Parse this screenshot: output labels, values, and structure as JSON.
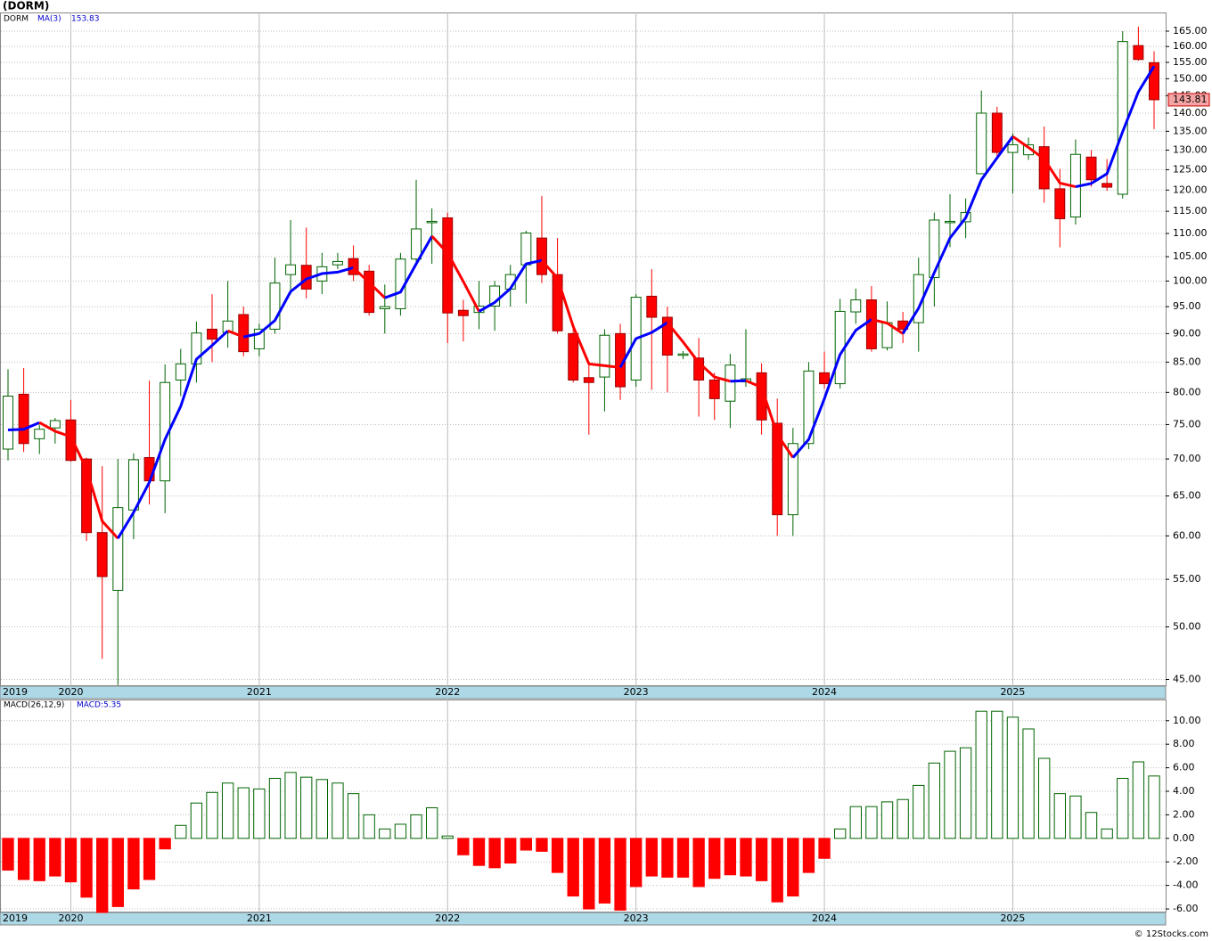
{
  "chart_data": [
    {
      "type": "candlestick",
      "title": "(DORM)",
      "symbol": "DORM",
      "ma_name": "MA(3)",
      "ma_last": "153.83",
      "last_price": 143.81,
      "categories": [
        "2019",
        null,
        null,
        null,
        "2020",
        null,
        null,
        null,
        null,
        null,
        null,
        null,
        null,
        null,
        null,
        null,
        "2021",
        null,
        null,
        null,
        null,
        null,
        null,
        null,
        null,
        null,
        null,
        null,
        "2022",
        null,
        null,
        null,
        null,
        null,
        null,
        null,
        null,
        null,
        null,
        null,
        "2023",
        null,
        null,
        null,
        null,
        null,
        null,
        null,
        null,
        null,
        null,
        null,
        "2024",
        null,
        null,
        null,
        null,
        null,
        null,
        null,
        null,
        null,
        null,
        null,
        "2025",
        null,
        null,
        null,
        null,
        null,
        null,
        null,
        null,
        null
      ],
      "open": [
        71.4,
        79.7,
        72.9,
        74.5,
        75.7,
        70,
        60.4,
        53.8,
        63.2,
        70.2,
        67,
        82,
        84.7,
        90.8,
        90.2,
        93.5,
        87.3,
        90.8,
        101.3,
        103.2,
        100,
        103.3,
        104.6,
        102,
        94.6,
        94.6,
        104.5,
        112.4,
        113.5,
        94.3,
        93.9,
        95.1,
        98.4,
        103.3,
        109,
        101.3,
        90,
        82.4,
        82.5,
        90,
        82,
        97,
        93,
        86.2,
        85.7,
        82,
        78.6,
        81.7,
        83.2,
        75.2,
        62.6,
        72.2,
        83.2,
        81.4,
        94,
        96.3,
        87.5,
        92.3,
        92,
        100.7,
        112.4,
        112.6,
        124,
        140,
        129.4,
        128.8,
        130.9,
        120.3,
        113.7,
        128.2,
        121.6,
        119,
        160.3,
        154.9
      ],
      "high": [
        83.8,
        84,
        75,
        76,
        78.8,
        70.2,
        69,
        70,
        70.8,
        81.9,
        84.6,
        87.3,
        92.2,
        97.4,
        100,
        95,
        91.8,
        104.8,
        113,
        111.3,
        105.8,
        105.8,
        107.4,
        103.3,
        99.3,
        105.8,
        122.5,
        115.7,
        114.7,
        96.3,
        100,
        100,
        103.3,
        110.6,
        118.6,
        109,
        91.8,
        85,
        90.8,
        91.8,
        97.4,
        102.4,
        95,
        86.9,
        89.2,
        83.2,
        86.4,
        90.8,
        84.8,
        79,
        74.5,
        85,
        86.8,
        96.5,
        98.5,
        99,
        96,
        94,
        104.8,
        114.7,
        119,
        118,
        146.5,
        141.8,
        134.5,
        133.3,
        136.3,
        125.2,
        132.8,
        130,
        127.7,
        165,
        166.5,
        158.5
      ],
      "low": [
        69.8,
        71,
        70.7,
        72.2,
        69.6,
        59.4,
        46.9,
        44.5,
        59.6,
        63.9,
        62.8,
        79.4,
        81.6,
        85,
        87.5,
        86,
        86,
        90,
        97.4,
        96.6,
        97.4,
        102.4,
        100,
        93.3,
        90,
        93.3,
        103.5,
        103.5,
        88.3,
        88.6,
        90.8,
        90.5,
        95,
        95.6,
        99.6,
        90,
        81.6,
        73.5,
        77,
        78.8,
        80.9,
        80.4,
        80,
        85.5,
        76.2,
        75.7,
        74.5,
        80.9,
        73.5,
        60,
        60,
        71.4,
        80.6,
        80.6,
        91.8,
        86.8,
        87,
        88.3,
        86.8,
        95,
        107,
        109,
        124,
        128.5,
        119.2,
        127.5,
        117,
        107,
        112,
        120.8,
        119.8,
        118,
        155.5,
        135.6
      ],
      "close": [
        79.4,
        72.2,
        74.3,
        75.6,
        69.8,
        60.4,
        55.3,
        63.5,
        69.9,
        67,
        81.6,
        84.7,
        90.1,
        89,
        92.3,
        86.8,
        90.8,
        99.6,
        103.3,
        98.4,
        102.9,
        104,
        101.3,
        93.9,
        95,
        104.5,
        111,
        112.7,
        93.8,
        93.3,
        95.1,
        99,
        101.3,
        110.1,
        101.3,
        90.5,
        82,
        81.6,
        89.7,
        80.9,
        96.8,
        93,
        86.2,
        86.4,
        82,
        79,
        84.5,
        82.2,
        75.7,
        62.6,
        72.2,
        83.5,
        81.4,
        94.1,
        96.3,
        87.3,
        92,
        90.8,
        101.3,
        113,
        112.7,
        114.7,
        140,
        129.4,
        131.4,
        131.4,
        120.3,
        113.3,
        128.9,
        122.5,
        120.7,
        161.6,
        155.9,
        143.81
      ],
      "ma": [
        74.2,
        74.3,
        75.3,
        74.0,
        73.2,
        68.6,
        61.8,
        59.7,
        62.9,
        66.8,
        72.8,
        77.8,
        85.5,
        87.9,
        90.5,
        89.4,
        90.0,
        92.4,
        97.9,
        100.4,
        101.5,
        101.8,
        102.7,
        99.7,
        96.7,
        97.8,
        103.5,
        109.4,
        105.8,
        99.9,
        94.1,
        95.8,
        98.5,
        103.5,
        104.2,
        100.6,
        91.3,
        84.7,
        84.4,
        84.1,
        89.1,
        90.2,
        92.0,
        88.5,
        84.9,
        82.5,
        81.8,
        81.9,
        80.8,
        73.5,
        70.2,
        72.8,
        79.0,
        86.3,
        90.6,
        92.6,
        91.9,
        90.0,
        94.7,
        101.7,
        109.0,
        113.5,
        122.5,
        128.0,
        133.6,
        130.7,
        127.7,
        121.7,
        120.8,
        121.6,
        124.0,
        134.9,
        146.1,
        153.8
      ],
      "up_color": "#006400",
      "down_color": "#ff0000",
      "ma_rising_color": "#0000ff",
      "ma_falling_color": "#ff0000",
      "log_scale": true,
      "ylim": [
        44.4,
        171.3
      ],
      "yticks": [
        {
          "value": 45,
          "label": "45.00"
        },
        {
          "value": 50,
          "label": "50.00"
        },
        {
          "value": 55,
          "label": "55.00"
        },
        {
          "value": 60,
          "label": "60.00"
        },
        {
          "value": 65,
          "label": "65.00"
        },
        {
          "value": 70,
          "label": "70.00"
        },
        {
          "value": 75,
          "label": "75.00"
        },
        {
          "value": 80,
          "label": "80.00"
        },
        {
          "value": 85,
          "label": "85.00"
        },
        {
          "value": 90,
          "label": "90.00"
        },
        {
          "value": 95,
          "label": "95.00"
        },
        {
          "value": 100,
          "label": "100.00"
        },
        {
          "value": 105,
          "label": "105.00"
        },
        {
          "value": 110,
          "label": "110.00"
        },
        {
          "value": 115,
          "label": "115.00"
        },
        {
          "value": 120,
          "label": "120.00"
        },
        {
          "value": 125,
          "label": "125.00"
        },
        {
          "value": 130,
          "label": "130.00"
        },
        {
          "value": 135,
          "label": "135.00"
        },
        {
          "value": 140,
          "label": "140.00"
        },
        {
          "value": 145,
          "label": "145.00"
        },
        {
          "value": 150,
          "label": "150.00"
        },
        {
          "value": 155,
          "label": "155.00"
        },
        {
          "value": 160,
          "label": "160.00"
        },
        {
          "value": 165,
          "label": "165.00"
        }
      ],
      "grid": true
    },
    {
      "type": "histogram",
      "title": "MACD(26,12,9)",
      "last_label": "MACD:5.35",
      "categories": [
        "2019",
        null,
        null,
        null,
        "2020",
        null,
        null,
        null,
        null,
        null,
        null,
        null,
        null,
        null,
        null,
        null,
        "2021",
        null,
        null,
        null,
        null,
        null,
        null,
        null,
        null,
        null,
        null,
        null,
        "2022",
        null,
        null,
        null,
        null,
        null,
        null,
        null,
        null,
        null,
        null,
        null,
        "2023",
        null,
        null,
        null,
        null,
        null,
        null,
        null,
        null,
        null,
        null,
        null,
        "2024",
        null,
        null,
        null,
        null,
        null,
        null,
        null,
        null,
        null,
        null,
        null,
        "2025",
        null,
        null,
        null,
        null,
        null,
        null,
        null,
        null,
        null
      ],
      "values": [
        -2.7,
        -3.5,
        -3.6,
        -3.2,
        -3.7,
        -5.0,
        -6.3,
        -5.8,
        -4.3,
        -3.5,
        -0.9,
        1.1,
        3.0,
        3.9,
        4.7,
        4.3,
        4.2,
        5.1,
        5.6,
        5.2,
        5.0,
        4.7,
        3.8,
        2.0,
        0.8,
        1.2,
        2.0,
        2.6,
        0.2,
        -1.4,
        -2.3,
        -2.5,
        -2.1,
        -1.0,
        -1.1,
        -2.9,
        -4.9,
        -6.0,
        -5.5,
        -6.1,
        -4.1,
        -3.2,
        -3.3,
        -3.3,
        -4.1,
        -3.4,
        -3.1,
        -3.2,
        -3.6,
        -5.4,
        -4.9,
        -2.9,
        -1.7,
        0.8,
        2.7,
        2.7,
        3.1,
        3.3,
        4.5,
        6.4,
        7.4,
        7.7,
        10.8,
        10.8,
        10.3,
        9.3,
        6.8,
        3.8,
        3.6,
        2.2,
        0.8,
        5.1,
        6.5,
        5.3
      ],
      "positive_color": "#006400",
      "negative_color": "#ff0000",
      "ylim": [
        -6.3,
        11.8
      ],
      "yticks": [
        {
          "value": -6,
          "label": "-6.00"
        },
        {
          "value": -4,
          "label": "-4.00"
        },
        {
          "value": -2,
          "label": "-2.00"
        },
        {
          "value": 0,
          "label": "0.00"
        },
        {
          "value": 2,
          "label": "2.00"
        },
        {
          "value": 4,
          "label": "4.00"
        },
        {
          "value": 6,
          "label": "6.00"
        },
        {
          "value": 8,
          "label": "8.00"
        },
        {
          "value": 10,
          "label": "10.00"
        }
      ],
      "grid": true
    }
  ],
  "footer": "© 12Stocks.com"
}
